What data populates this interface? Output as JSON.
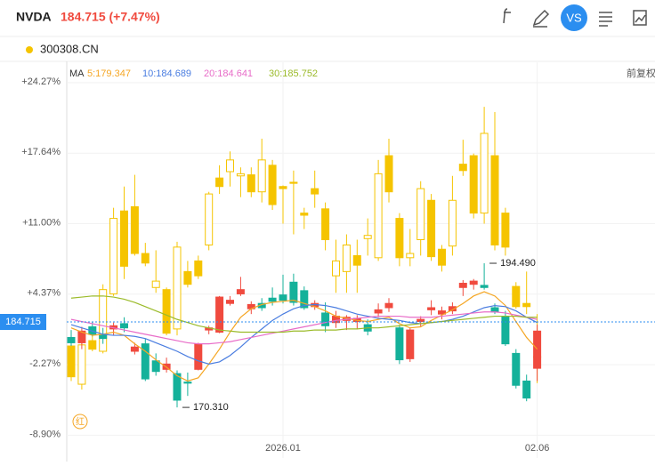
{
  "chart_data": {
    "type": "candlestick",
    "price_text": "184.715 (+7.47%)",
    "ma_label": "MA",
    "adjust_label": "前复权",
    "compare_button": "VS",
    "marker_text": "红",
    "categories": [
      null,
      null,
      null,
      null,
      null,
      null,
      null,
      null,
      null,
      null,
      null,
      null,
      null,
      null,
      null,
      null,
      null,
      null,
      null,
      null,
      "2026.01",
      null,
      null,
      null,
      null,
      null,
      null,
      null,
      null,
      null,
      null,
      null,
      null,
      null,
      null,
      null,
      null,
      null,
      null,
      null,
      null,
      null,
      null,
      null,
      "02.06"
    ],
    "ylim": [
      -11.04,
      26.19
    ],
    "yticks": [
      {
        "value": 24.27,
        "label": "+24.27%"
      },
      {
        "value": 17.64,
        "label": "+17.64%"
      },
      {
        "value": 11.0,
        "label": "+11.00%"
      },
      {
        "value": 4.37,
        "label": "+4.37%"
      },
      {
        "value": -2.27,
        "label": "-2.27%"
      },
      {
        "value": -8.9,
        "label": "-8.90%"
      }
    ],
    "grid": true,
    "up_color": "#f04a3e",
    "down_color": "#14b19a",
    "series": [
      {
        "name": "NVDA",
        "values": [
          [
            0.3,
            1.0,
            -0.5,
            -0.2
          ],
          [
            -0.2,
            1.3,
            -0.8,
            0.9
          ],
          [
            1.3,
            1.8,
            0.4,
            0.6
          ],
          [
            0.5,
            1.2,
            -0.3,
            0.2
          ],
          [
            1.1,
            1.7,
            0.5,
            1.4
          ],
          [
            1.6,
            2.2,
            0.8,
            1.2
          ],
          [
            -1.0,
            -0.2,
            -1.3,
            -0.6
          ],
          [
            -0.3,
            0.2,
            -3.8,
            -3.6
          ],
          [
            -1.9,
            -1.2,
            -3.3,
            -2.9
          ],
          [
            -2.7,
            -1.6,
            -3.0,
            -2.2
          ],
          [
            -3.1,
            -2.8,
            -6.28,
            -5.6
          ],
          [
            -3.9,
            -3.0,
            -5.2,
            -4.0
          ],
          [
            -2.7,
            -0.2,
            -2.8,
            -0.3
          ],
          [
            1.0,
            1.4,
            0.6,
            1.2
          ],
          [
            0.8,
            4.2,
            0.7,
            4.1
          ],
          [
            3.5,
            4.2,
            3.3,
            3.8
          ],
          [
            4.4,
            6.0,
            4.2,
            4.8
          ],
          [
            3.0,
            3.7,
            2.5,
            3.4
          ],
          [
            3.5,
            4.0,
            2.8,
            3.1
          ],
          [
            4.0,
            5.0,
            3.3,
            3.7
          ],
          [
            4.3,
            6.2,
            3.5,
            3.8
          ],
          [
            5.5,
            6.3,
            3.3,
            3.6
          ],
          [
            4.7,
            5.1,
            2.9,
            3.1
          ],
          [
            3.2,
            3.8,
            2.9,
            3.5
          ],
          [
            2.6,
            3.6,
            0.8,
            1.4
          ],
          [
            1.7,
            2.8,
            1.2,
            2.3
          ],
          [
            1.9,
            2.4,
            1.0,
            2.2
          ],
          [
            1.8,
            2.4,
            1.1,
            2.1
          ],
          [
            1.5,
            2.0,
            0.5,
            0.9
          ],
          [
            2.6,
            3.5,
            2.2,
            2.9
          ],
          [
            3.1,
            4.0,
            2.7,
            3.5
          ],
          [
            1.2,
            1.5,
            -2.2,
            -1.8
          ],
          [
            -1.7,
            1.2,
            -2.0,
            1.0
          ],
          [
            1.8,
            2.3,
            1.3,
            2.0
          ],
          [
            2.9,
            3.8,
            2.4,
            3.1
          ],
          [
            2.5,
            3.2,
            2.0,
            2.8
          ],
          [
            2.8,
            3.6,
            2.5,
            3.2
          ],
          [
            5.0,
            5.7,
            4.2,
            5.4
          ],
          [
            5.3,
            5.8,
            4.8,
            5.6
          ],
          [
            5.2,
            7.28,
            4.8,
            5.0
          ],
          [
            3.1,
            3.5,
            2.5,
            2.7
          ],
          [
            2.3,
            2.8,
            -0.5,
            -0.3
          ],
          [
            -1.2,
            -0.8,
            -4.5,
            -4.2
          ],
          [
            -3.8,
            -3.2,
            -5.7,
            -5.4
          ],
          [
            -2.6,
            1.5,
            -3.8,
            0.9
          ]
        ]
      },
      {
        "name": "300308.CN",
        "color": "#f5c400",
        "values": [
          [
            -0.5,
            0.0,
            -3.8,
            -3.4
          ],
          [
            -4.1,
            0.5,
            -4.6,
            -0.4
          ],
          [
            0.0,
            1.0,
            -1.0,
            -0.8
          ],
          [
            -1.0,
            5.3,
            -1.2,
            4.8
          ],
          [
            4.4,
            12.5,
            4.2,
            11.5
          ],
          [
            12.2,
            14.5,
            5.8,
            7.0
          ],
          [
            12.6,
            15.6,
            8.0,
            8.2
          ],
          [
            8.2,
            9.2,
            7.0,
            7.3
          ],
          [
            5.0,
            8.5,
            4.5,
            5.6
          ],
          [
            4.8,
            5.0,
            0.5,
            0.7
          ],
          [
            1.1,
            9.3,
            0.5,
            8.8
          ],
          [
            6.5,
            7.5,
            5.0,
            5.3
          ],
          [
            7.5,
            8.0,
            5.8,
            6.1
          ],
          [
            9.0,
            14.0,
            8.5,
            13.8
          ],
          [
            15.3,
            16.5,
            13.8,
            14.5
          ],
          [
            15.9,
            17.8,
            14.5,
            17.0
          ],
          [
            15.5,
            16.3,
            13.5,
            15.7
          ],
          [
            15.6,
            16.3,
            13.5,
            14.0
          ],
          [
            14.0,
            19.0,
            13.0,
            17.0
          ],
          [
            16.5,
            17.0,
            12.3,
            12.8
          ],
          [
            14.5,
            14.6,
            11.0,
            14.3
          ],
          [
            14.9,
            16.0,
            10.0,
            14.8
          ],
          [
            12.0,
            12.5,
            10.5,
            11.8
          ],
          [
            14.3,
            16.0,
            12.5,
            13.8
          ],
          [
            12.4,
            13.0,
            8.5,
            9.5
          ],
          [
            6.1,
            9.5,
            4.5,
            7.5
          ],
          [
            6.5,
            10.0,
            4.5,
            9.0
          ],
          [
            8.0,
            9.5,
            4.5,
            7.1
          ],
          [
            9.6,
            11.5,
            8.0,
            9.9
          ],
          [
            7.8,
            17.0,
            7.5,
            15.7
          ],
          [
            17.4,
            19.0,
            13.0,
            14.0
          ],
          [
            11.5,
            12.0,
            7.0,
            7.8
          ],
          [
            7.8,
            10.5,
            7.0,
            8.2
          ],
          [
            9.5,
            15.0,
            8.0,
            14.3
          ],
          [
            13.2,
            13.8,
            7.5,
            7.9
          ],
          [
            8.6,
            9.0,
            6.5,
            7.1
          ],
          [
            8.9,
            15.5,
            8.0,
            13.2
          ],
          [
            16.6,
            18.9,
            15.5,
            16.0
          ],
          [
            17.4,
            17.6,
            11.5,
            12.0
          ],
          [
            12.0,
            22.0,
            11.0,
            19.5
          ],
          [
            17.4,
            21.5,
            8.5,
            9.0
          ],
          [
            12.0,
            12.5,
            8.0,
            8.8
          ],
          [
            5.1,
            5.5,
            3.0,
            3.2
          ],
          [
            3.5,
            6.5,
            2.5,
            3.2
          ],
          [
            -1.5,
            2.5,
            -4.0,
            -1.5
          ]
        ]
      }
    ],
    "ma": [
      {
        "name": "5:179.347",
        "color": "#f5a623",
        "values": [
          1.2,
          0.8,
          0.5,
          0.6,
          0.8,
          0.5,
          -0.3,
          -1.0,
          -1.8,
          -2.5,
          -3.3,
          -3.8,
          -3.5,
          -2.2,
          -0.8,
          0.8,
          2.2,
          3.0,
          3.4,
          3.6,
          3.7,
          3.8,
          3.5,
          3.2,
          2.8,
          2.3,
          2.1,
          1.9,
          1.8,
          2.0,
          2.2,
          1.6,
          1.2,
          1.3,
          1.9,
          2.4,
          2.9,
          3.5,
          4.2,
          4.6,
          4.2,
          3.3,
          1.8,
          0.3,
          -0.8
        ]
      },
      {
        "name": "10:184.689",
        "color": "#4a7de0",
        "values": [
          1.5,
          1.2,
          0.9,
          0.6,
          0.5,
          0.5,
          0.4,
          0.2,
          -0.2,
          -0.6,
          -1.0,
          -1.5,
          -1.9,
          -2.2,
          -2.0,
          -1.4,
          -0.6,
          0.3,
          1.1,
          1.9,
          2.5,
          3.0,
          3.3,
          3.4,
          3.3,
          3.1,
          2.8,
          2.5,
          2.3,
          2.1,
          2.0,
          1.9,
          1.7,
          1.6,
          1.7,
          1.8,
          2.0,
          2.3,
          2.7,
          3.1,
          3.3,
          3.2,
          2.8,
          2.2,
          1.7
        ]
      },
      {
        "name": "20:184.641",
        "color": "#e86cc8",
        "values": [
          2.0,
          1.8,
          1.6,
          1.4,
          1.2,
          1.0,
          0.8,
          0.6,
          0.4,
          0.2,
          0.0,
          -0.2,
          -0.3,
          -0.3,
          -0.2,
          -0.1,
          0.1,
          0.3,
          0.5,
          0.7,
          0.9,
          1.1,
          1.3,
          1.5,
          1.7,
          1.9,
          2.0,
          2.1,
          2.2,
          2.3,
          2.3,
          2.3,
          2.2,
          2.2,
          2.2,
          2.3,
          2.4,
          2.5,
          2.6,
          2.7,
          2.7,
          2.6,
          2.4,
          2.2,
          2.0
        ]
      },
      {
        "name": "30:185.752",
        "color": "#9bbb2a",
        "values": [
          4.0,
          4.1,
          4.2,
          4.2,
          4.1,
          3.9,
          3.6,
          3.2,
          2.8,
          2.4,
          2.0,
          1.7,
          1.4,
          1.2,
          1.0,
          0.9,
          0.8,
          0.8,
          0.8,
          0.8,
          0.8,
          0.9,
          0.9,
          1.0,
          1.0,
          1.0,
          1.1,
          1.1,
          1.2,
          1.2,
          1.3,
          1.4,
          1.5,
          1.6,
          1.7,
          1.8,
          1.9,
          2.0,
          2.1,
          2.2,
          2.3,
          2.3,
          2.3,
          2.2,
          2.2
        ]
      }
    ],
    "price_line": {
      "value": 1.76,
      "label": "184.715"
    },
    "annotations": [
      {
        "label": "194.490",
        "value": 7.28,
        "index": 39
      },
      {
        "label": "170.310",
        "value": -6.28,
        "index": 10
      }
    ]
  }
}
